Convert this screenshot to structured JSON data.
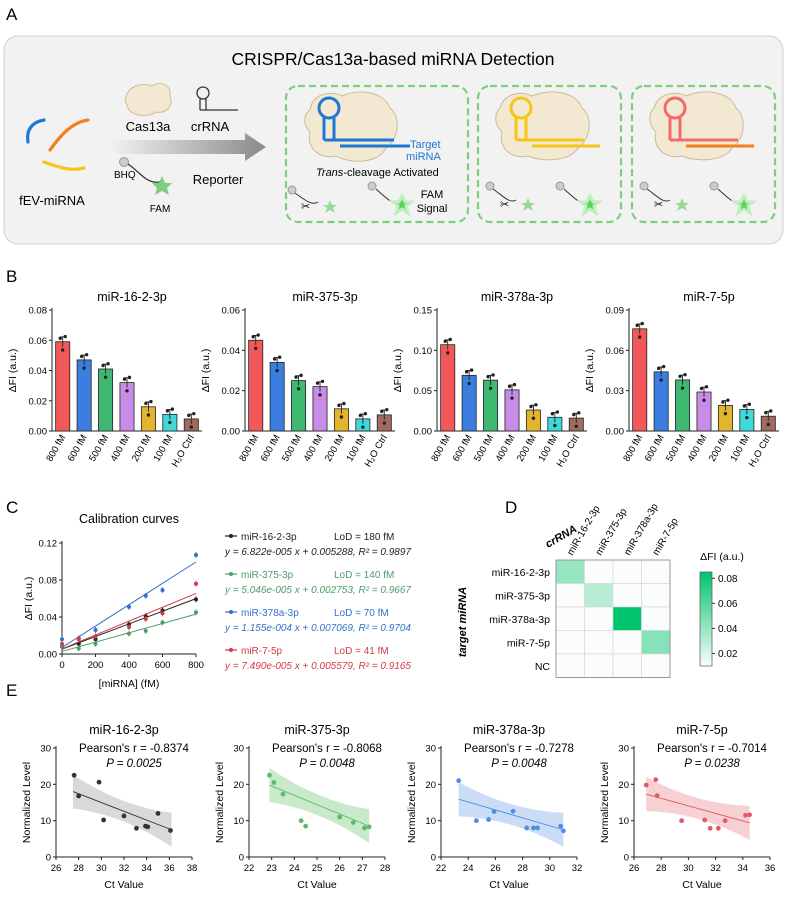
{
  "panelA": {
    "letter": "A",
    "title": "CRISPR/Cas13a-based miRNA Detection",
    "fev_label": "fEV-miRNA",
    "cas_label": "Cas13a",
    "crrna_label": "crRNA",
    "bhq_label": "BHQ",
    "fam_label": "FAM",
    "reporter_label": "Reporter",
    "target_label_1": "Target",
    "target_label_2": "miRNA",
    "trans_italic": "Trans",
    "trans_rest": "-cleavage Activated",
    "fam_signal_1": "FAM",
    "fam_signal_2": "Signal",
    "colors": {
      "blue": "#1f77d4",
      "orange": "#f07f1e",
      "yellow": "#f5c518",
      "red": "#f26b6b",
      "green": "#6fcf6f",
      "box": "#f2f2f2"
    }
  },
  "panelB": {
    "letter": "B",
    "ylabel": "ΔFI (a.u.)",
    "bar_colors": [
      "#f2575a",
      "#3b7ee0",
      "#3fb871",
      "#c98be8",
      "#e3b52e",
      "#3fd9d9",
      "#a06a5e"
    ]
  },
  "panelC": {
    "letter": "C",
    "title": "Calibration curves",
    "legend": [
      {
        "name": "miR-16-2-3p",
        "lod": "LoD = 180 fM",
        "eq": "y = 6.822e-005 x + 0.005288, R² = 0.9897",
        "color": "#222222"
      },
      {
        "name": "miR-375-3p",
        "lod": "LoD = 140 fM",
        "eq": "y = 5.046e-005 x + 0.002753, R² = 0.9667",
        "color": "#4a9e6a"
      },
      {
        "name": "miR-378a-3p",
        "lod": "LoD = 70 fM",
        "eq": "y = 1.155e-004 x + 0.007069, R² = 0.9704",
        "color": "#2f73c9"
      },
      {
        "name": "miR-7-5p",
        "lod": "LoD = 41 fM",
        "eq": "y = 7.490e-005 x + 0.005579, R² = 0.9165",
        "color": "#d23a44"
      }
    ]
  },
  "panelD": {
    "letter": "D",
    "col_header": "crRNA",
    "row_header": "target miRNA",
    "cbar_title": "ΔFI (a.u.)",
    "cbar_ticks": [
      "0.08",
      "0.06",
      "0.04",
      "0.02"
    ]
  },
  "panelE": {
    "letter": "E",
    "ylabel": "Normalized Level",
    "xlabel": "Ct Value"
  },
  "chart_data": [
    {
      "type": "bar",
      "title": "miR-16-2-3p",
      "categories": [
        "800 fM",
        "600 fM",
        "500 fM",
        "400 fM",
        "200 fM",
        "100 fM",
        "H₂O Ctrl"
      ],
      "values": [
        0.059,
        0.047,
        0.041,
        0.032,
        0.016,
        0.011,
        0.008
      ],
      "ylim": [
        0,
        0.08
      ],
      "yticks": [
        "0.00",
        "0.02",
        "0.04",
        "0.06",
        "0.08"
      ]
    },
    {
      "type": "bar",
      "title": "miR-375-3p",
      "categories": [
        "800 fM",
        "600 fM",
        "500 fM",
        "400 fM",
        "200 fM",
        "100 fM",
        "H₂O Ctrl"
      ],
      "values": [
        0.045,
        0.034,
        0.025,
        0.022,
        0.011,
        0.006,
        0.008
      ],
      "ylim": [
        0,
        0.06
      ],
      "yticks": [
        "0.00",
        "0.02",
        "0.04",
        "0.06"
      ]
    },
    {
      "type": "bar",
      "title": "miR-378a-3p",
      "categories": [
        "800 fM",
        "600 fM",
        "500 fM",
        "400 fM",
        "200 fM",
        "100 fM",
        "H₂O Ctrl"
      ],
      "values": [
        0.107,
        0.069,
        0.063,
        0.051,
        0.026,
        0.017,
        0.016
      ],
      "ylim": [
        0,
        0.15
      ],
      "yticks": [
        "0.00",
        "0.05",
        "0.10",
        "0.15"
      ]
    },
    {
      "type": "bar",
      "title": "miR-7-5p",
      "categories": [
        "800 fM",
        "600 fM",
        "500 fM",
        "400 fM",
        "200 fM",
        "100 fM",
        "H₂O Ctrl"
      ],
      "values": [
        0.076,
        0.044,
        0.038,
        0.029,
        0.019,
        0.016,
        0.011
      ],
      "ylim": [
        0,
        0.09
      ],
      "yticks": [
        "0.00",
        "0.03",
        "0.06",
        "0.09"
      ]
    },
    {
      "type": "line",
      "title": "Calibration curves",
      "xlabel": "[miRNA] (fM)",
      "ylabel": "ΔFI (a.u.)",
      "xlim": [
        0,
        800
      ],
      "ylim": [
        0,
        0.12
      ],
      "xticks": [
        "0",
        "200",
        "400",
        "600",
        "800"
      ],
      "yticks": [
        "0.00",
        "0.04",
        "0.08",
        "0.12"
      ],
      "x": [
        0,
        100,
        200,
        400,
        500,
        600,
        800
      ],
      "series": [
        {
          "name": "miR-16-2-3p",
          "values": [
            0.008,
            0.011,
            0.016,
            0.032,
            0.041,
            0.047,
            0.059
          ],
          "color": "#222222",
          "slope": 6.822e-05,
          "intercept": 0.005288
        },
        {
          "name": "miR-375-3p",
          "values": [
            0.008,
            0.006,
            0.011,
            0.022,
            0.025,
            0.034,
            0.045
          ],
          "color": "#4a9e6a",
          "slope": 5.046e-05,
          "intercept": 0.002753
        },
        {
          "name": "miR-378a-3p",
          "values": [
            0.016,
            0.017,
            0.026,
            0.051,
            0.063,
            0.069,
            0.107
          ],
          "color": "#2f73c9",
          "slope": 0.0001155,
          "intercept": 0.007069
        },
        {
          "name": "miR-7-5p",
          "values": [
            0.011,
            0.016,
            0.019,
            0.029,
            0.038,
            0.044,
            0.076
          ],
          "color": "#d23a44",
          "slope": 7.49e-05,
          "intercept": 0.005579
        }
      ]
    },
    {
      "type": "heatmap",
      "rows": [
        "miR-16-2-3p",
        "miR-375-3p",
        "miR-378a-3p",
        "miR-7-5p",
        "NC"
      ],
      "columns": [
        "miR-16-2-3p",
        "miR-375-3p",
        "miR-378a-3p",
        "miR-7-5p"
      ],
      "values": [
        [
          0.04,
          0.01,
          0.01,
          0.01
        ],
        [
          0.01,
          0.03,
          0.01,
          0.01
        ],
        [
          0.01,
          0.01,
          0.085,
          0.01
        ],
        [
          0.01,
          0.01,
          0.01,
          0.045
        ],
        [
          0.01,
          0.01,
          0.01,
          0.01
        ]
      ],
      "colorbar_range": [
        0.01,
        0.085
      ]
    },
    {
      "type": "scatter",
      "title": "miR-16-2-3p",
      "stat": "Pearson's r = -0.8374",
      "p": "P = 0.0025",
      "color": "#333333",
      "band": "#cccccc",
      "xlim": [
        26,
        38
      ],
      "ylim": [
        0,
        30
      ],
      "xticks": [
        "26",
        "28",
        "30",
        "32",
        "34",
        "36",
        "38"
      ],
      "yticks": [
        "0",
        "10",
        "20",
        "30"
      ],
      "x": [
        27.6,
        28.0,
        29.8,
        30.2,
        32.0,
        33.1,
        33.9,
        34.1,
        35.0,
        36.1
      ],
      "y": [
        22.5,
        16.8,
        20.6,
        10.2,
        11.3,
        7.9,
        8.5,
        8.3,
        12.0,
        7.3
      ],
      "fit": [
        [
          27.5,
          18.0
        ],
        [
          36.2,
          7.5
        ]
      ]
    },
    {
      "type": "scatter",
      "title": "miR-375-3p",
      "stat": "Pearson's r = -0.8068",
      "p": "P = 0.0048",
      "color": "#5cba6a",
      "band": "#b6e3b8",
      "xlim": [
        22,
        28
      ],
      "ylim": [
        0,
        30
      ],
      "xticks": [
        "22",
        "23",
        "24",
        "25",
        "26",
        "27",
        "28"
      ],
      "yticks": [
        "0",
        "10",
        "20",
        "30"
      ],
      "x": [
        22.9,
        23.1,
        23.5,
        24.3,
        24.5,
        26.0,
        26.6,
        27.1,
        27.3
      ],
      "y": [
        22.5,
        20.5,
        17.3,
        10.0,
        8.5,
        11.0,
        9.5,
        8.0,
        8.3
      ],
      "fit": [
        [
          22.9,
          19.8
        ],
        [
          27.3,
          8.5
        ]
      ]
    },
    {
      "type": "scatter",
      "title": "miR-378a-3p",
      "stat": "Pearson's r = -0.7278",
      "p": "P = 0.0048",
      "color": "#4f8fe0",
      "band": "#b9d2f3",
      "xlim": [
        22,
        32
      ],
      "ylim": [
        0,
        30
      ],
      "xticks": [
        "22",
        "24",
        "26",
        "28",
        "30",
        "32"
      ],
      "yticks": [
        "0",
        "10",
        "20",
        "30"
      ],
      "x": [
        23.3,
        24.6,
        25.5,
        25.9,
        27.3,
        28.3,
        28.8,
        29.1,
        30.8,
        31.0
      ],
      "y": [
        21.0,
        10.0,
        10.3,
        12.5,
        12.6,
        8.0,
        8.0,
        8.0,
        8.5,
        7.2
      ],
      "fit": [
        [
          23.3,
          15.9
        ],
        [
          31.0,
          7.5
        ]
      ]
    },
    {
      "type": "scatter",
      "title": "miR-7-5p",
      "stat": "Pearson's r = -0.7014",
      "p": "P = 0.0238",
      "color": "#e05a63",
      "band": "#f4c0c4",
      "xlim": [
        26,
        36
      ],
      "ylim": [
        0,
        30
      ],
      "xticks": [
        "26",
        "28",
        "30",
        "32",
        "34",
        "36"
      ],
      "yticks": [
        "0",
        "10",
        "20",
        "30"
      ],
      "x": [
        26.9,
        27.6,
        27.7,
        29.5,
        31.2,
        31.6,
        32.2,
        32.7,
        34.2,
        34.5
      ],
      "y": [
        19.8,
        21.3,
        16.9,
        10.0,
        10.2,
        7.9,
        7.9,
        10.0,
        11.5,
        11.6
      ],
      "fit": [
        [
          26.9,
          17.3
        ],
        [
          34.5,
          9.4
        ]
      ]
    }
  ]
}
